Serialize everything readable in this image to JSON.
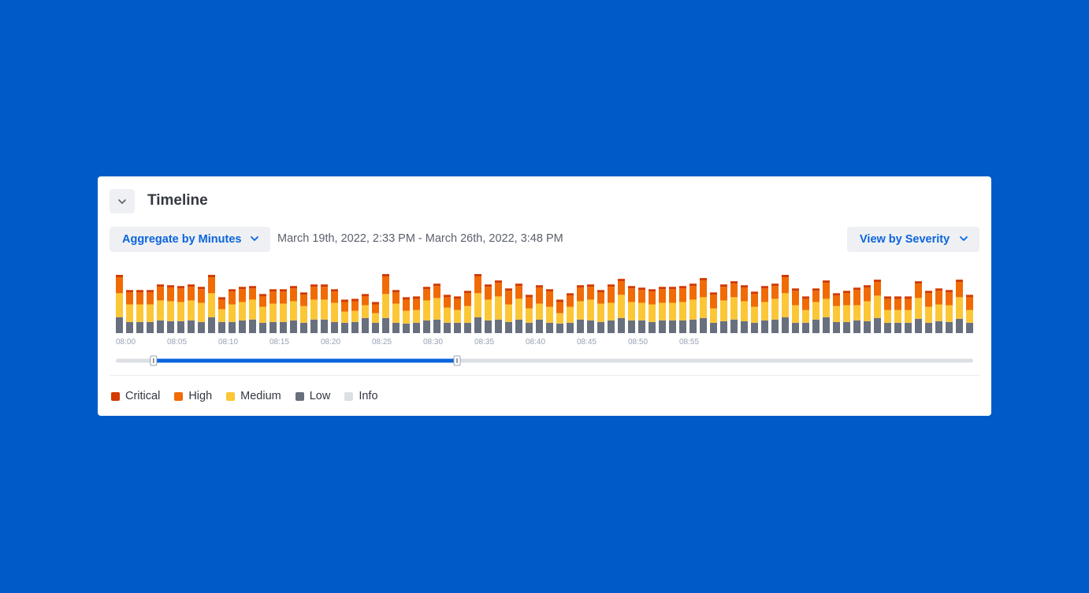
{
  "timeline": {
    "title": "Timeline",
    "aggregate_label": "Aggregate by Minutes",
    "date_range": "March 19th, 2022, 2:33 PM - March 26th, 2022, 3:48 PM",
    "view_label": "View by Severity"
  },
  "colors": {
    "critical": "#D23B00",
    "high": "#F06B05",
    "medium": "#FCC736",
    "low": "#69707D",
    "info": "#DCDFE4",
    "accent": "#0B64DD"
  },
  "legend": [
    {
      "label": "Critical",
      "key": "critical"
    },
    {
      "label": "High",
      "key": "high"
    },
    {
      "label": "Medium",
      "key": "medium"
    },
    {
      "label": "Low",
      "key": "low"
    },
    {
      "label": "Info",
      "key": "info"
    }
  ],
  "chart_data": {
    "type": "bar",
    "stacked": true,
    "x_ticks": [
      "08:00",
      "08:05",
      "08:10",
      "08:15",
      "08:20",
      "08:25",
      "08:30",
      "08:35",
      "08:40",
      "08:45",
      "08:50",
      "08:55"
    ],
    "bar_count": 84,
    "series": [
      {
        "name": "Low",
        "key": "low",
        "values": [
          20,
          14,
          14,
          14,
          16,
          15,
          15,
          16,
          14,
          20,
          14,
          14,
          16,
          17,
          13,
          14,
          14,
          16,
          13,
          17,
          17,
          14,
          13,
          14,
          19,
          13,
          19,
          13,
          12,
          13,
          16,
          17,
          13,
          13,
          13,
          20,
          16,
          17,
          14,
          17,
          13,
          17,
          13,
          12,
          13,
          17,
          16,
          14,
          16,
          19,
          16,
          16,
          14,
          16,
          16,
          16,
          17,
          19,
          13,
          15,
          17,
          15,
          13,
          16,
          17,
          20,
          13,
          13,
          17,
          20,
          14,
          14,
          16,
          15,
          19,
          13,
          13,
          13,
          18,
          13,
          15,
          14,
          18,
          13
        ]
      },
      {
        "name": "Medium",
        "key": "medium",
        "values": [
          30,
          22,
          22,
          22,
          25,
          25,
          24,
          25,
          24,
          30,
          16,
          22,
          23,
          25,
          20,
          23,
          23,
          24,
          21,
          25,
          25,
          24,
          14,
          14,
          16,
          12,
          30,
          24,
          16,
          16,
          25,
          27,
          19,
          16,
          21,
          30,
          26,
          29,
          22,
          26,
          18,
          20,
          20,
          13,
          20,
          23,
          26,
          23,
          22,
          29,
          23,
          22,
          22,
          22,
          22,
          23,
          25,
          26,
          18,
          26,
          28,
          25,
          20,
          23,
          26,
          30,
          22,
          16,
          22,
          23,
          20,
          21,
          19,
          25,
          28,
          16,
          16,
          16,
          26,
          20,
          21,
          21,
          27,
          16
        ]
      },
      {
        "name": "High",
        "key": "high",
        "values": [
          20,
          15,
          15,
          15,
          17,
          17,
          17,
          17,
          17,
          20,
          12,
          16,
          16,
          14,
          13,
          15,
          15,
          16,
          14,
          16,
          16,
          14,
          12,
          12,
          11,
          11,
          22,
          14,
          14,
          14,
          14,
          15,
          13,
          14,
          16,
          21,
          16,
          17,
          17,
          16,
          14,
          20,
          19,
          14,
          14,
          17,
          16,
          14,
          20,
          17,
          17,
          16,
          16,
          17,
          17,
          17,
          17,
          21,
          17,
          17,
          17,
          17,
          16,
          17,
          16,
          20,
          18,
          14,
          14,
          20,
          13,
          15,
          19,
          17,
          17,
          14,
          14,
          14,
          18,
          17,
          17,
          16,
          19,
          16
        ]
      },
      {
        "name": "Critical",
        "key": "critical",
        "values": [
          3,
          3,
          3,
          3,
          3,
          3,
          3,
          3,
          3,
          3,
          3,
          3,
          3,
          3,
          3,
          3,
          3,
          3,
          3,
          3,
          3,
          3,
          3,
          3,
          3,
          3,
          3,
          3,
          3,
          3,
          3,
          3,
          3,
          3,
          3,
          3,
          3,
          3,
          3,
          3,
          3,
          3,
          3,
          3,
          3,
          3,
          3,
          3,
          3,
          3,
          3,
          3,
          3,
          3,
          3,
          3,
          3,
          3,
          3,
          3,
          3,
          3,
          3,
          3,
          3,
          3,
          3,
          3,
          3,
          3,
          3,
          3,
          3,
          3,
          3,
          3,
          3,
          3,
          3,
          3,
          3,
          3,
          3,
          3
        ]
      }
    ],
    "ylim": [
      0,
      75
    ],
    "selection_range": [
      0.044,
      0.398
    ]
  }
}
